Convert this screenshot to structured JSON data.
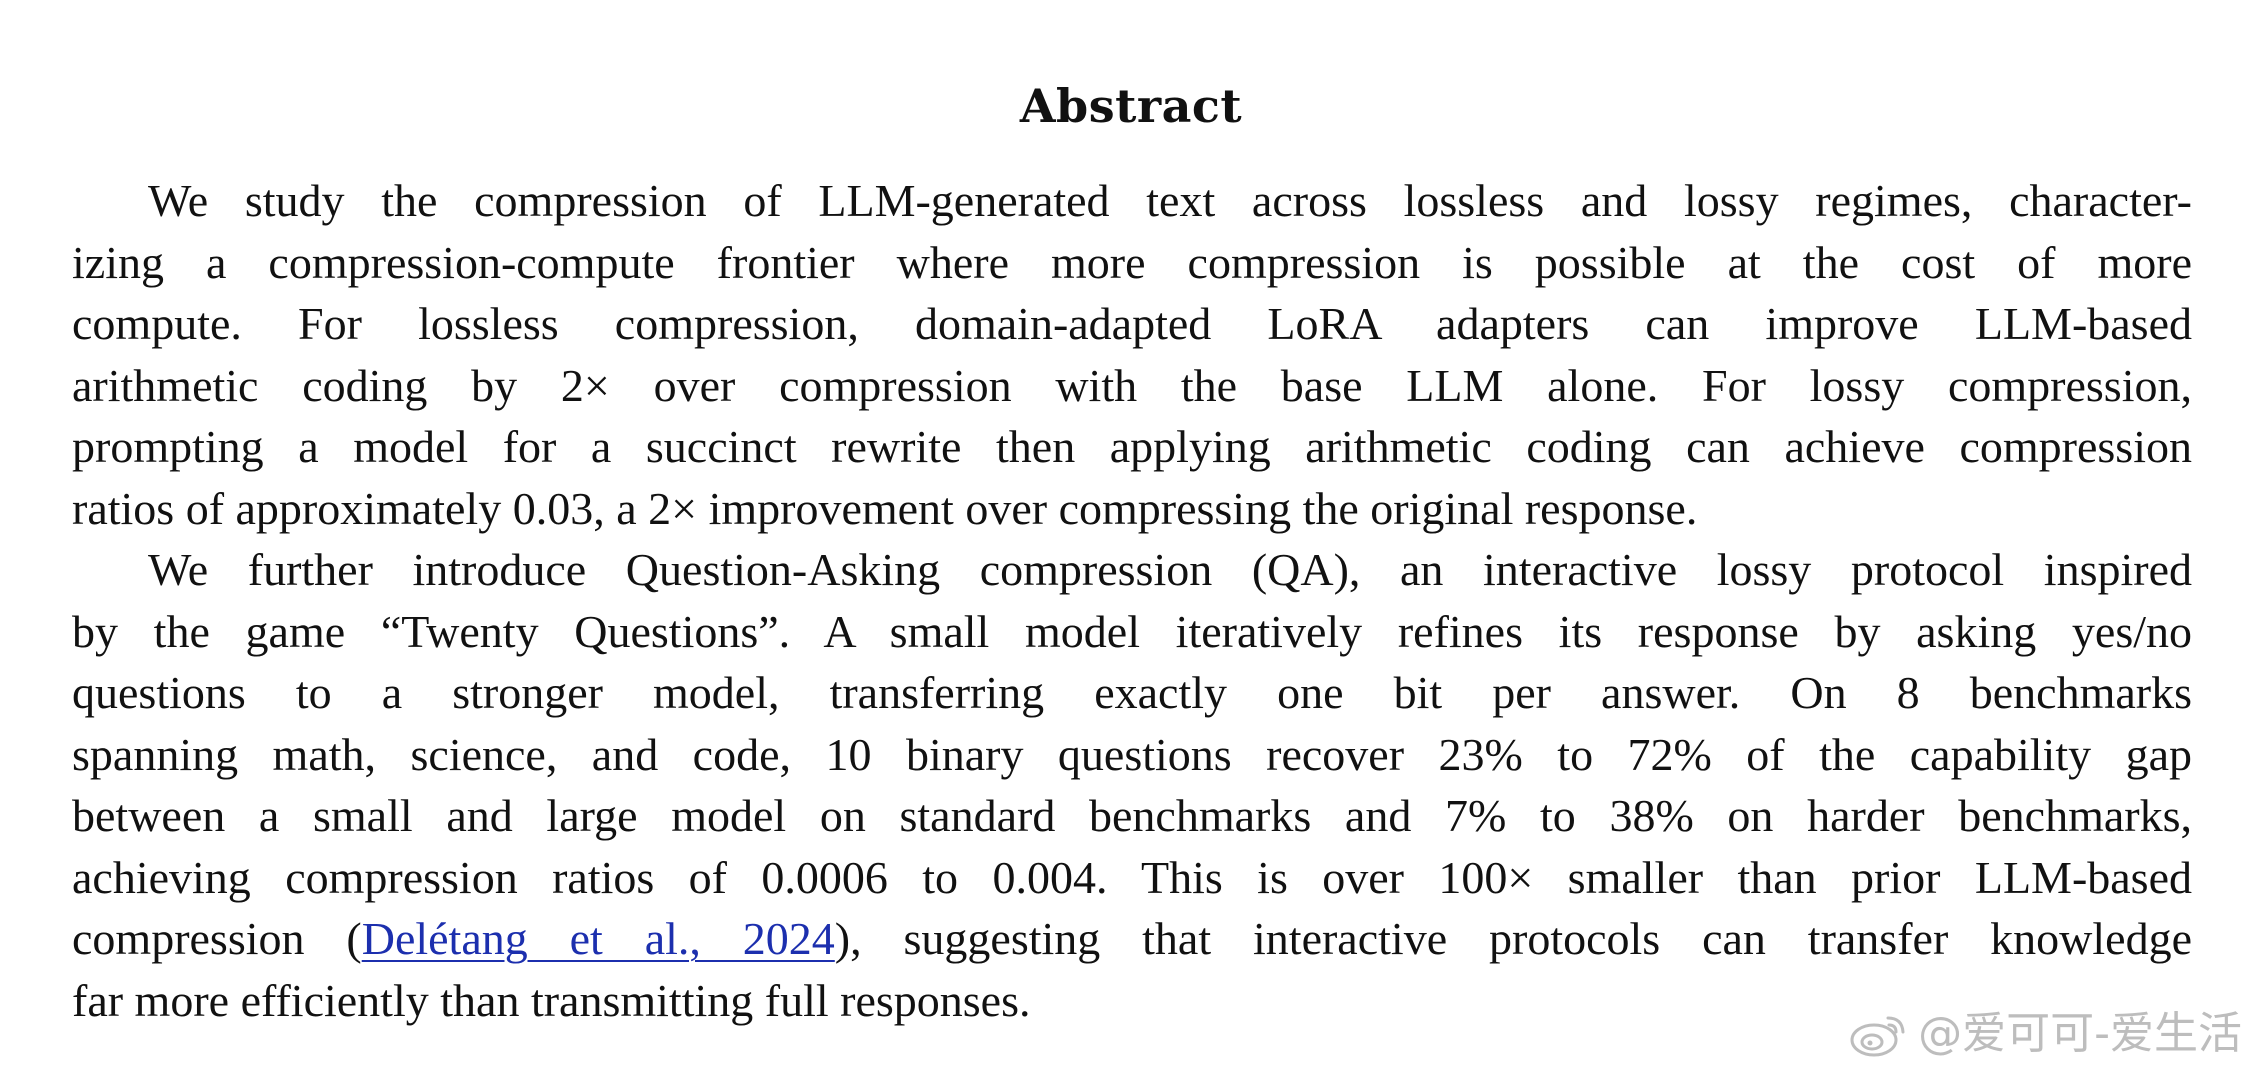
{
  "abstract": {
    "title": "Abstract",
    "p1": [
      "We study the compression of LLM-generated text across lossless and lossy regimes, character-",
      "izing a compression-compute frontier where more compression is possible at the cost of more",
      "compute.  For lossless compression, domain-adapted LoRA adapters can improve LLM-based",
      "arithmetic coding by 2× over compression with the base LLM alone.  For lossy compression,",
      "prompting a model for a succinct rewrite then applying arithmetic coding can achieve compression",
      "ratios of approximately 0.03, a 2× improvement over compressing the original response."
    ],
    "p2": [
      "We further introduce Question-Asking compression (QA), an interactive lossy protocol inspired",
      "by the game “Twenty Questions”.  A small model iteratively refines its response by asking yes/no",
      "questions to a stronger model, transferring exactly one bit per answer.  On 8 benchmarks",
      "spanning math, science, and code, 10 binary questions recover 23% to 72% of the capability gap",
      "between a small and large model on standard benchmarks and 7% to 38% on harder benchmarks,",
      "achieving compression ratios of 0.0006 to 0.004.  This is over 100× smaller than prior LLM-based"
    ],
    "p2_citation_line": {
      "before": "compression (",
      "citation": "Delétang et al., 2024",
      "after": "), suggesting that interactive protocols can transfer knowledge"
    },
    "p2_last": "far more efficiently than transmitting full responses."
  },
  "watermark": {
    "text": "@爱可可-爱生活",
    "icon": "weibo-icon"
  },
  "colors": {
    "text": "#111111",
    "link": "#1c2fae",
    "watermark": "#bdbdbd"
  }
}
